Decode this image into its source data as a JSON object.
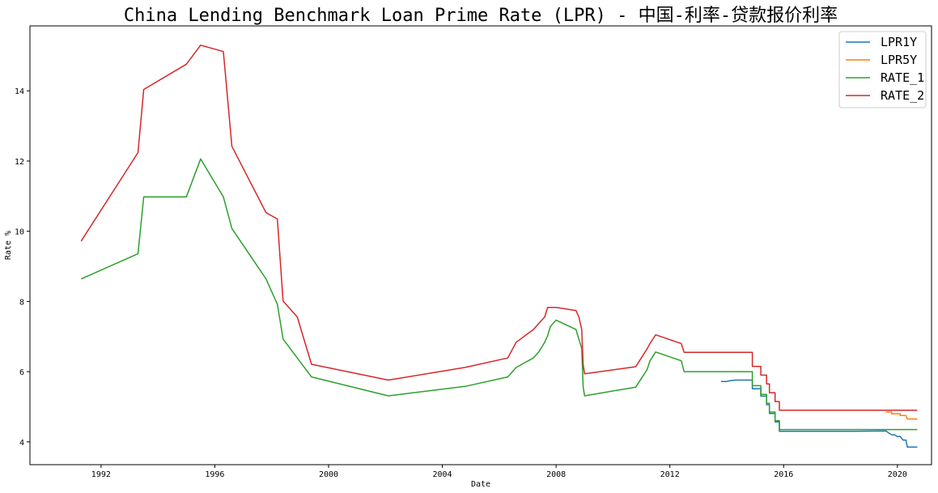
{
  "chart_data": {
    "type": "line",
    "title": "China Lending Benchmark Loan Prime Rate (LPR) - 中国-利率-贷款报价利率",
    "xlabel": "Date",
    "ylabel": "Rate %",
    "xlim": [
      1989.5,
      2021.2
    ],
    "ylim": [
      3.35,
      15.85
    ],
    "x_ticks": [
      "1992",
      "1996",
      "2000",
      "2004",
      "2008",
      "2012",
      "2016",
      "2020"
    ],
    "y_ticks": [
      "4",
      "6",
      "8",
      "10",
      "12",
      "14"
    ],
    "grid": false,
    "legend_position": "top-right",
    "series": [
      {
        "name": "LPR1Y",
        "color": "#1f77b4",
        "points": [
          [
            2013.8,
            5.72
          ],
          [
            2014.0,
            5.72
          ],
          [
            2014.1,
            5.74
          ],
          [
            2014.3,
            5.76
          ],
          [
            2014.5,
            5.76
          ],
          [
            2014.8,
            5.76
          ],
          [
            2014.9,
            5.76
          ],
          [
            2014.9,
            5.51
          ],
          [
            2015.2,
            5.51
          ],
          [
            2015.2,
            5.3
          ],
          [
            2015.4,
            5.3
          ],
          [
            2015.4,
            5.06
          ],
          [
            2015.5,
            5.06
          ],
          [
            2015.5,
            4.81
          ],
          [
            2015.7,
            4.81
          ],
          [
            2015.7,
            4.57
          ],
          [
            2015.85,
            4.57
          ],
          [
            2015.85,
            4.3
          ],
          [
            2018.5,
            4.3
          ],
          [
            2019.6,
            4.31
          ],
          [
            2019.7,
            4.25
          ],
          [
            2019.8,
            4.2
          ],
          [
            2019.9,
            4.2
          ],
          [
            2020.0,
            4.15
          ],
          [
            2020.1,
            4.15
          ],
          [
            2020.2,
            4.05
          ],
          [
            2020.3,
            4.05
          ],
          [
            2020.35,
            3.85
          ],
          [
            2020.7,
            3.85
          ]
        ]
      },
      {
        "name": "LPR5Y",
        "color": "#ff7f0e",
        "points": [
          [
            2019.6,
            4.85
          ],
          [
            2019.8,
            4.85
          ],
          [
            2019.8,
            4.8
          ],
          [
            2020.1,
            4.8
          ],
          [
            2020.1,
            4.75
          ],
          [
            2020.3,
            4.75
          ],
          [
            2020.35,
            4.65
          ],
          [
            2020.7,
            4.65
          ]
        ]
      },
      {
        "name": "RATE_1",
        "color": "#2ca02c",
        "points": [
          [
            1991.3,
            8.64
          ],
          [
            1993.3,
            9.36
          ],
          [
            1993.5,
            10.98
          ],
          [
            1995.0,
            10.98
          ],
          [
            1995.5,
            12.06
          ],
          [
            1996.3,
            10.98
          ],
          [
            1996.6,
            10.08
          ],
          [
            1997.8,
            8.64
          ],
          [
            1998.2,
            7.92
          ],
          [
            1998.4,
            6.93
          ],
          [
            1998.9,
            6.39
          ],
          [
            1999.4,
            5.85
          ],
          [
            2002.1,
            5.31
          ],
          [
            2004.8,
            5.58
          ],
          [
            2006.3,
            5.85
          ],
          [
            2006.6,
            6.12
          ],
          [
            2007.2,
            6.39
          ],
          [
            2007.4,
            6.57
          ],
          [
            2007.6,
            6.84
          ],
          [
            2007.7,
            7.02
          ],
          [
            2007.8,
            7.29
          ],
          [
            2008.0,
            7.47
          ],
          [
            2008.7,
            7.2
          ],
          [
            2008.8,
            6.93
          ],
          [
            2008.9,
            6.66
          ],
          [
            2008.95,
            5.58
          ],
          [
            2009.0,
            5.31
          ],
          [
            2010.8,
            5.56
          ],
          [
            2011.0,
            5.81
          ],
          [
            2011.2,
            6.06
          ],
          [
            2011.3,
            6.31
          ],
          [
            2011.5,
            6.56
          ],
          [
            2012.4,
            6.31
          ],
          [
            2012.5,
            6.0
          ],
          [
            2014.9,
            6.0
          ],
          [
            2014.9,
            5.6
          ],
          [
            2015.2,
            5.6
          ],
          [
            2015.2,
            5.35
          ],
          [
            2015.4,
            5.35
          ],
          [
            2015.4,
            5.1
          ],
          [
            2015.5,
            5.1
          ],
          [
            2015.5,
            4.85
          ],
          [
            2015.7,
            4.85
          ],
          [
            2015.7,
            4.6
          ],
          [
            2015.85,
            4.6
          ],
          [
            2015.85,
            4.35
          ],
          [
            2020.7,
            4.35
          ]
        ]
      },
      {
        "name": "RATE_2",
        "color": "#d62728",
        "points": [
          [
            1991.3,
            9.72
          ],
          [
            1993.3,
            12.24
          ],
          [
            1993.5,
            14.04
          ],
          [
            1995.0,
            14.76
          ],
          [
            1995.5,
            15.3
          ],
          [
            1996.3,
            15.12
          ],
          [
            1996.6,
            12.42
          ],
          [
            1997.8,
            10.53
          ],
          [
            1998.2,
            10.35
          ],
          [
            1998.4,
            8.01
          ],
          [
            1998.9,
            7.56
          ],
          [
            1999.4,
            6.21
          ],
          [
            2002.1,
            5.76
          ],
          [
            2004.8,
            6.12
          ],
          [
            2006.3,
            6.39
          ],
          [
            2006.6,
            6.84
          ],
          [
            2007.2,
            7.2
          ],
          [
            2007.4,
            7.38
          ],
          [
            2007.6,
            7.56
          ],
          [
            2007.7,
            7.83
          ],
          [
            2008.0,
            7.83
          ],
          [
            2008.7,
            7.74
          ],
          [
            2008.8,
            7.56
          ],
          [
            2008.9,
            7.2
          ],
          [
            2008.95,
            6.21
          ],
          [
            2009.0,
            5.94
          ],
          [
            2010.8,
            6.14
          ],
          [
            2011.0,
            6.4
          ],
          [
            2011.2,
            6.65
          ],
          [
            2011.3,
            6.8
          ],
          [
            2011.5,
            7.05
          ],
          [
            2012.4,
            6.8
          ],
          [
            2012.5,
            6.55
          ],
          [
            2014.9,
            6.55
          ],
          [
            2014.9,
            6.15
          ],
          [
            2015.2,
            6.15
          ],
          [
            2015.2,
            5.9
          ],
          [
            2015.4,
            5.9
          ],
          [
            2015.4,
            5.65
          ],
          [
            2015.5,
            5.65
          ],
          [
            2015.5,
            5.4
          ],
          [
            2015.7,
            5.4
          ],
          [
            2015.7,
            5.15
          ],
          [
            2015.85,
            5.15
          ],
          [
            2015.85,
            4.9
          ],
          [
            2020.7,
            4.9
          ]
        ]
      }
    ]
  }
}
